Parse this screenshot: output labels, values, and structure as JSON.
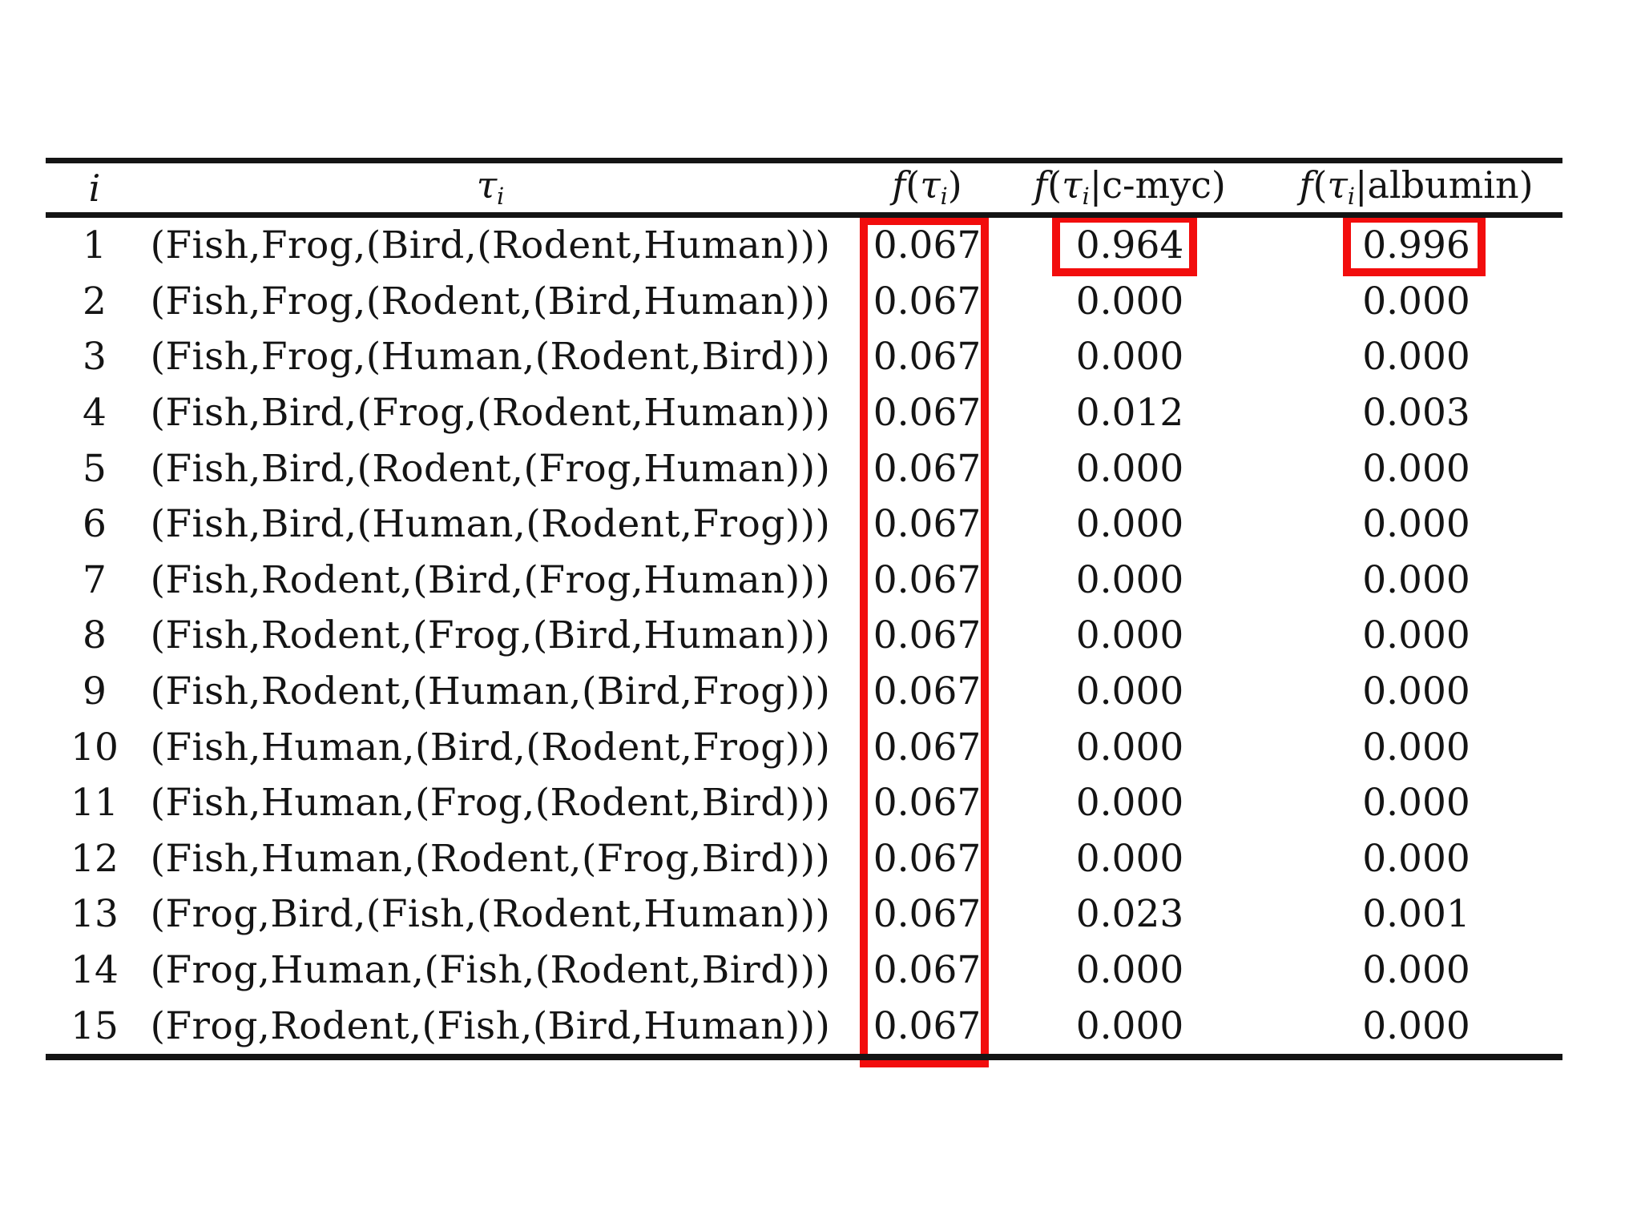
{
  "page": {
    "background_color": "#ffffff",
    "text_color": "#141414",
    "rule_color": "#141414"
  },
  "table": {
    "columns": [
      {
        "id": "index",
        "label_text": "i",
        "label_parts": [
          {
            "t": "i",
            "it": true
          }
        ]
      },
      {
        "id": "topology",
        "label_text": "τi",
        "label_parts": [
          {
            "t": "τ",
            "it": true
          },
          {
            "t": "i",
            "sub": true
          }
        ]
      },
      {
        "id": "prior",
        "label_text": "f(τi)",
        "label_parts": [
          {
            "t": "f",
            "it": true
          },
          {
            "t": "("
          },
          {
            "t": "τ",
            "it": true
          },
          {
            "t": "i",
            "sub": true
          },
          {
            "t": ")"
          }
        ]
      },
      {
        "id": "c_myc",
        "label_text": "f(τi|c-myc)",
        "label_parts": [
          {
            "t": "f",
            "it": true
          },
          {
            "t": "("
          },
          {
            "t": "τ",
            "it": true
          },
          {
            "t": "i",
            "sub": true
          },
          {
            "t": "|"
          },
          {
            "t": "c-myc"
          },
          {
            "t": ")"
          }
        ]
      },
      {
        "id": "albumin",
        "label_text": "f(τi|albumin)",
        "label_parts": [
          {
            "t": "f",
            "it": true
          },
          {
            "t": "("
          },
          {
            "t": "τ",
            "it": true
          },
          {
            "t": "i",
            "sub": true
          },
          {
            "t": "|"
          },
          {
            "t": "albumin"
          },
          {
            "t": ")"
          }
        ]
      }
    ],
    "rows": [
      {
        "i": "1",
        "tree": "(Fish,Frog,(Bird,(Rodent,Human)))",
        "f": "0.067",
        "c_myc": "0.964",
        "albumin": "0.996"
      },
      {
        "i": "2",
        "tree": "(Fish,Frog,(Rodent,(Bird,Human)))",
        "f": "0.067",
        "c_myc": "0.000",
        "albumin": "0.000"
      },
      {
        "i": "3",
        "tree": "(Fish,Frog,(Human,(Rodent,Bird)))",
        "f": "0.067",
        "c_myc": "0.000",
        "albumin": "0.000"
      },
      {
        "i": "4",
        "tree": "(Fish,Bird,(Frog,(Rodent,Human)))",
        "f": "0.067",
        "c_myc": "0.012",
        "albumin": "0.003"
      },
      {
        "i": "5",
        "tree": "(Fish,Bird,(Rodent,(Frog,Human)))",
        "f": "0.067",
        "c_myc": "0.000",
        "albumin": "0.000"
      },
      {
        "i": "6",
        "tree": "(Fish,Bird,(Human,(Rodent,Frog)))",
        "f": "0.067",
        "c_myc": "0.000",
        "albumin": "0.000"
      },
      {
        "i": "7",
        "tree": "(Fish,Rodent,(Bird,(Frog,Human)))",
        "f": "0.067",
        "c_myc": "0.000",
        "albumin": "0.000"
      },
      {
        "i": "8",
        "tree": "(Fish,Rodent,(Frog,(Bird,Human)))",
        "f": "0.067",
        "c_myc": "0.000",
        "albumin": "0.000"
      },
      {
        "i": "9",
        "tree": "(Fish,Rodent,(Human,(Bird,Frog)))",
        "f": "0.067",
        "c_myc": "0.000",
        "albumin": "0.000"
      },
      {
        "i": "10",
        "tree": "(Fish,Human,(Bird,(Rodent,Frog)))",
        "f": "0.067",
        "c_myc": "0.000",
        "albumin": "0.000"
      },
      {
        "i": "11",
        "tree": "(Fish,Human,(Frog,(Rodent,Bird)))",
        "f": "0.067",
        "c_myc": "0.000",
        "albumin": "0.000"
      },
      {
        "i": "12",
        "tree": "(Fish,Human,(Rodent,(Frog,Bird)))",
        "f": "0.067",
        "c_myc": "0.000",
        "albumin": "0.000"
      },
      {
        "i": "13",
        "tree": "(Frog,Bird,(Fish,(Rodent,Human)))",
        "f": "0.067",
        "c_myc": "0.023",
        "albumin": "0.001"
      },
      {
        "i": "14",
        "tree": "(Frog,Human,(Fish,(Rodent,Bird)))",
        "f": "0.067",
        "c_myc": "0.000",
        "albumin": "0.000"
      },
      {
        "i": "15",
        "tree": "(Frog,Rodent,(Fish,(Bird,Human)))",
        "f": "0.067",
        "c_myc": "0.000",
        "albumin": "0.000"
      }
    ]
  },
  "highlights": {
    "color": "#f20d0d",
    "boxes": [
      {
        "id": "prior-column",
        "highlighted_values": "0.067 (all 15 rows of f(τi) column)"
      },
      {
        "id": "row1-c-myc",
        "highlighted_values": "0.964"
      },
      {
        "id": "row1-albumin",
        "highlighted_values": "0.996"
      }
    ]
  }
}
